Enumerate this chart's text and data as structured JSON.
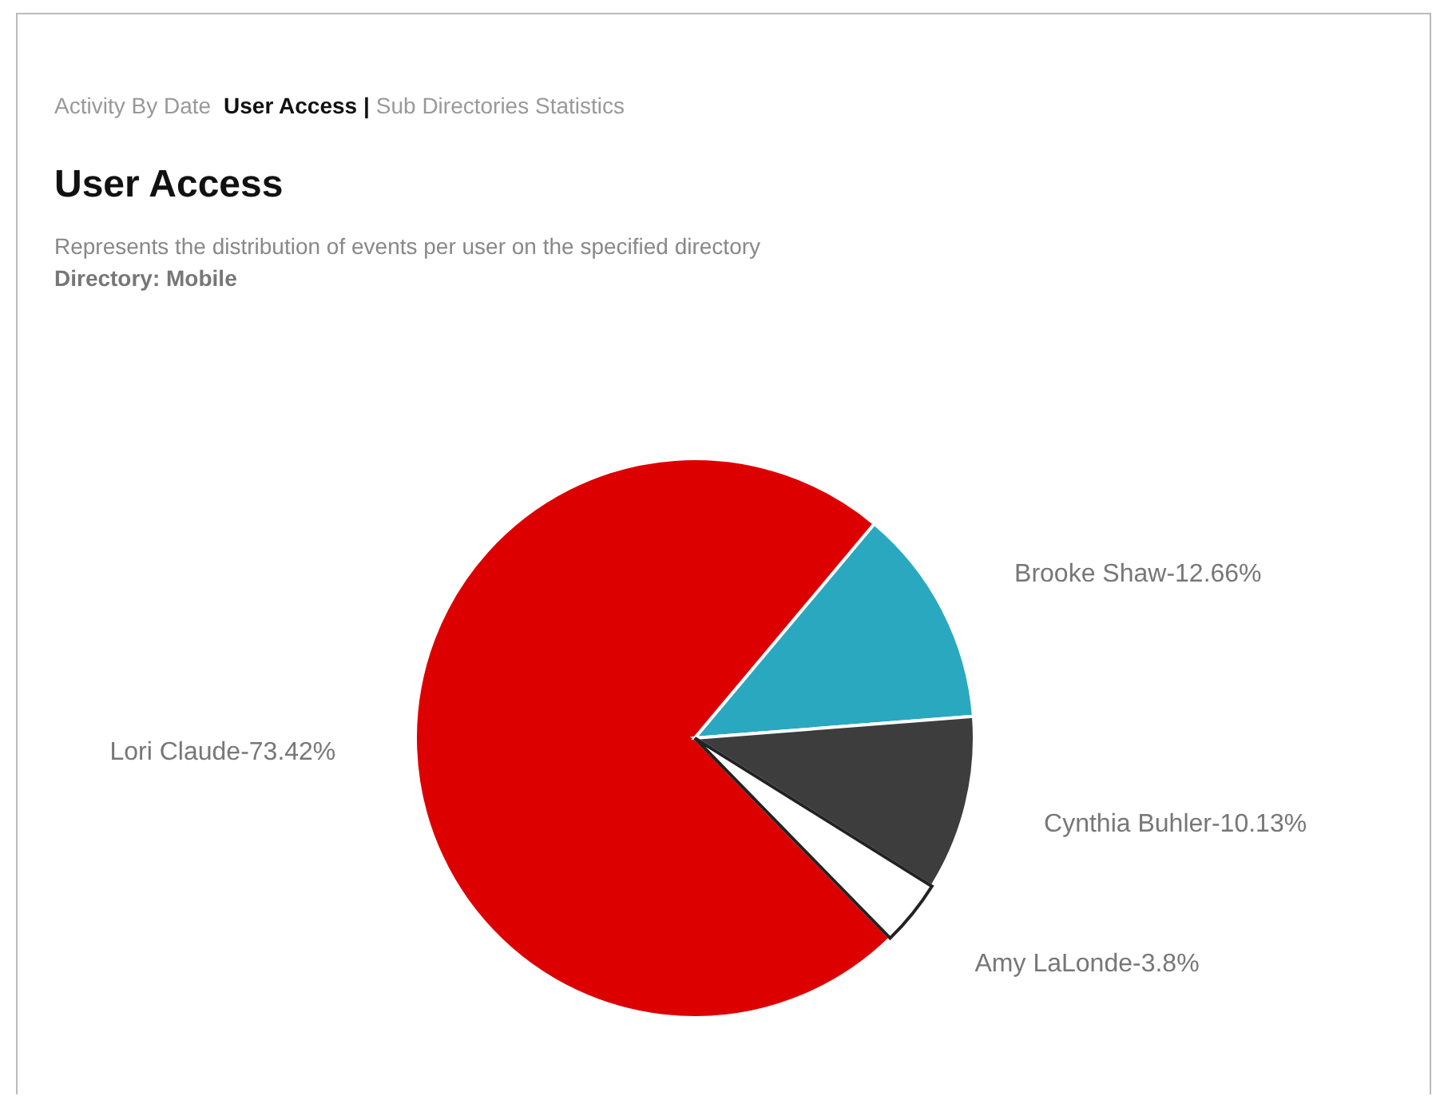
{
  "chart_data": {
    "type": "pie",
    "title": "User Access",
    "subtitle": "Represents the distribution of events per user on the specified directory",
    "annotations": [
      "Activity By Date",
      "User Access |",
      "Sub Directories Statistics",
      "Directory: Mobile"
    ],
    "categories": [
      "Lori Claude",
      "Brooke Shaw",
      "Cynthia Buhler",
      "Amy LaLonde"
    ],
    "values": [
      73.42,
      12.66,
      10.13,
      3.8
    ],
    "value_labels": [
      "73.42%",
      "12.66%",
      "10.13%",
      "3.8%"
    ],
    "colors": [
      "#dd0000",
      "#2aa8c0",
      "#3d3d3d",
      "#ffffff"
    ]
  }
}
